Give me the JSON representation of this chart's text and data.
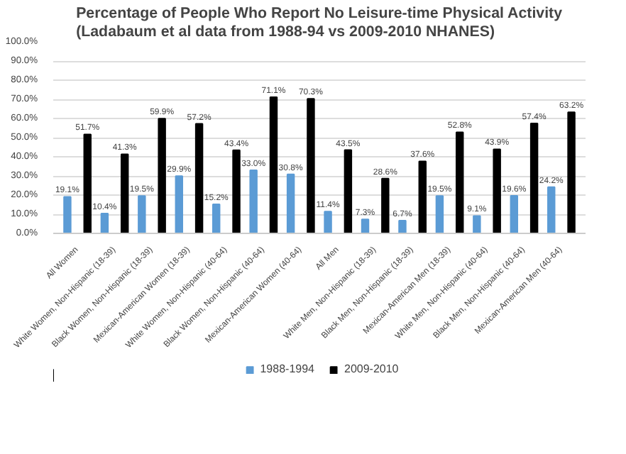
{
  "chart_data": {
    "type": "bar",
    "title": "Percentage of People Who Report No Leisure-time Physical Activity\n(Ladabaum et al data from 1988-94 vs 2009-2010 NHANES)",
    "categories": [
      "All Women",
      "White Women, Non-Hispanic (18-39)",
      "Black Women, Non-Hispanic (18-39)",
      "Mexican-American Women (18-39)",
      "White Women, Non-Hispanic (40-64)",
      "Black Women, Non-Hispanic (40-64)",
      "Mexican-American Women (40-64)",
      "All Men",
      "White Men, Non-Hispanic (18-39)",
      "Black Men, Non-Hispanic (18-39)",
      "Mexican-American Men (18-39)",
      "White Men, Non-Hispanic (40-64)",
      "Black Men, Non-Hispanic (40-64)",
      "Mexican-American Men (40-64)"
    ],
    "series": [
      {
        "name": "1988-1994",
        "color": "#5b9bd5",
        "values": [
          19.1,
          10.4,
          19.5,
          29.9,
          15.2,
          33.0,
          30.8,
          11.4,
          7.3,
          6.7,
          19.5,
          9.1,
          19.6,
          24.2
        ],
        "value_labels": [
          "19.1%",
          "10.4%",
          "19.5%",
          "29.9%",
          "15.2%",
          "33.0%",
          "30.8%",
          "11.4%",
          "7.3%",
          "6.7%",
          "19.5%",
          "9.1%",
          "19.6%",
          "24.2%"
        ]
      },
      {
        "name": "2009-2010",
        "color": "#000000",
        "values": [
          51.7,
          41.3,
          59.9,
          57.2,
          43.4,
          71.1,
          70.3,
          43.5,
          28.6,
          37.6,
          52.8,
          43.9,
          57.4,
          63.2
        ],
        "value_labels": [
          "51.7%",
          "41.3%",
          "59.9%",
          "57.2%",
          "43.4%",
          "71.1%",
          "70.3%",
          "43.5%",
          "28.6%",
          "37.6%",
          "52.8%",
          "43.9%",
          "57.4%",
          "63.2%"
        ]
      }
    ],
    "ylim": [
      0,
      100
    ],
    "yticks": [
      {
        "value": 0,
        "label": "0.0%"
      },
      {
        "value": 10,
        "label": "10.0%"
      },
      {
        "value": 20,
        "label": "20.0%"
      },
      {
        "value": 30,
        "label": "30.0%"
      },
      {
        "value": 40,
        "label": "40.0%"
      },
      {
        "value": 50,
        "label": "50.0%"
      },
      {
        "value": 60,
        "label": "60.0%"
      },
      {
        "value": 70,
        "label": "70.0%"
      },
      {
        "value": 80,
        "label": "80.0%"
      },
      {
        "value": 90,
        "label": "90.0%"
      },
      {
        "value": 100,
        "label": "100.0%"
      }
    ],
    "grid": "y",
    "legend": "bottom"
  }
}
